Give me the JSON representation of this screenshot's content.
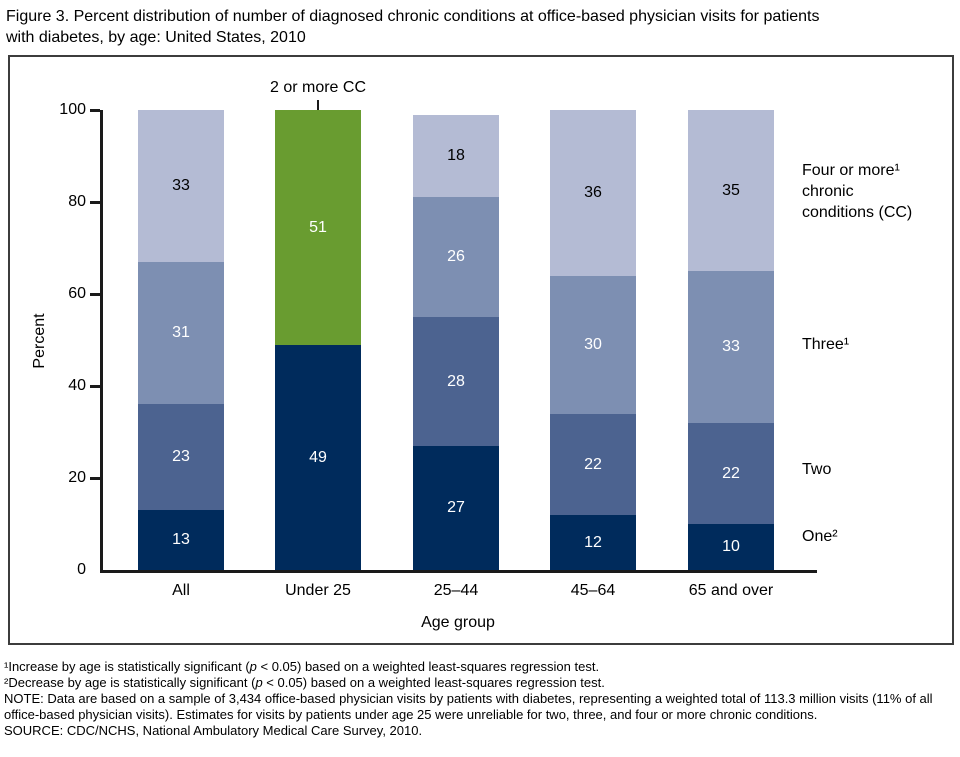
{
  "title": {
    "line1": "Figure 3. Percent distribution of number of diagnosed chronic conditions at office-based physician visits for patients",
    "line2": "with diabetes, by age: United States, 2010"
  },
  "chart_data": {
    "type": "bar",
    "stacked": true,
    "title": "Figure 3. Percent distribution of number of diagnosed chronic conditions at office-based physician visits for patients with diabetes, by age: United States, 2010",
    "xlabel": "Age group",
    "ylabel": "Percent",
    "ylim": [
      0,
      100
    ],
    "yticks": [
      0,
      20,
      40,
      60,
      80,
      100
    ],
    "grid": false,
    "legend_position": "right-of-last-bar",
    "categories": [
      "All",
      "Under 25",
      "25–44",
      "45–64",
      "65 and over"
    ],
    "series": [
      {
        "name": "One²",
        "color": "#002b5c",
        "label_color": "#ffffff",
        "values": [
          13,
          49,
          27,
          12,
          10
        ]
      },
      {
        "name": "2 or more CC",
        "color": "#699c30",
        "label_color": "#ffffff",
        "values": [
          null,
          51,
          null,
          null,
          null
        ]
      },
      {
        "name": "Two",
        "color": "#4c6390",
        "label_color": "#ffffff",
        "values": [
          23,
          null,
          28,
          22,
          22
        ]
      },
      {
        "name": "Three¹",
        "color": "#7d8fb2",
        "label_color": "#ffffff",
        "values": [
          31,
          null,
          26,
          30,
          33
        ]
      },
      {
        "name": "Four or more¹ chronic conditions (CC)",
        "color": "#b4bbd4",
        "label_color": "#000000",
        "values": [
          33,
          null,
          18,
          36,
          35
        ]
      }
    ],
    "annotation": {
      "text": "2 or more CC",
      "category": "Under 25",
      "value": 51,
      "color": "#699c30"
    }
  },
  "series_labels": {
    "four_line1": "Four or more¹",
    "four_line2": "chronic",
    "four_line3": "conditions (CC)",
    "three": "Three¹",
    "two": "Two",
    "one": "One²"
  },
  "footnotes": {
    "fn1": {
      "pre": "¹Increase by age is statistically significant (",
      "p": "p",
      "post": " < 0.05) based on a weighted least-squares regression test."
    },
    "fn2": {
      "pre": "²Decrease by age is statistically significant (",
      "p": "p",
      "post": " < 0.05) based on a weighted least-squares regression test."
    },
    "note": "NOTE: Data are based on a sample of 3,434 office-based physician visits by patients with diabetes, representing a weighted total of 113.3 million visits (11% of all office-based physician visits). Estimates for visits by patients under age 25 were unreliable for two, three, and four or more chronic conditions.",
    "source": "SOURCE: CDC/NCHS, National Ambulatory Medical Care Survey, 2010."
  }
}
